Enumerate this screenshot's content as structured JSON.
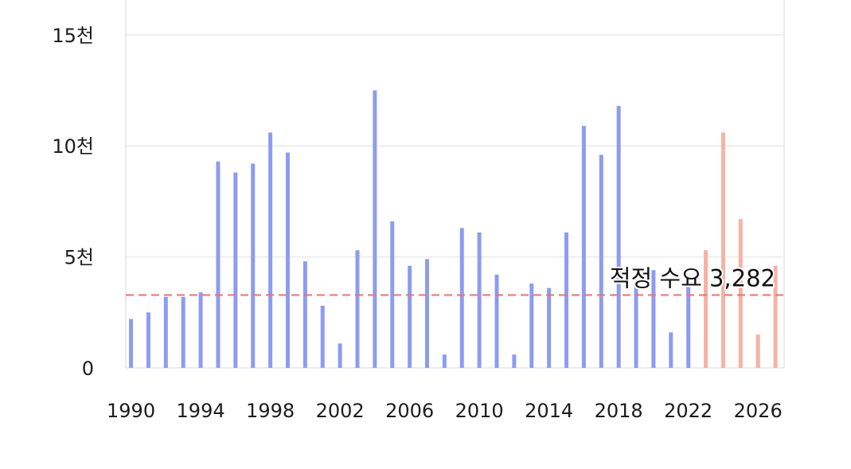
{
  "chart_data": {
    "type": "bar",
    "xlim": [
      1989.7,
      2027.5
    ],
    "ylim": [
      0,
      16500
    ],
    "grid": true,
    "series": [
      {
        "color": "#8d9cf0",
        "x": [
          1990,
          1991,
          1992,
          1993,
          1994,
          1995,
          1996,
          1997,
          1998,
          1999,
          2000,
          2001,
          2002,
          2003,
          2004,
          2005,
          2006,
          2007,
          2008,
          2009,
          2010,
          2011,
          2012,
          2013,
          2014,
          2015,
          2016,
          2017,
          2018,
          2019,
          2020,
          2021,
          2022
        ],
        "values": [
          2200,
          2500,
          3200,
          3200,
          3400,
          9300,
          8800,
          9200,
          10600,
          9700,
          4800,
          2800,
          1100,
          5300,
          12500,
          6600,
          4600,
          4900,
          600,
          6300,
          6100,
          4200,
          600,
          3800,
          3600,
          6100,
          10900,
          9600,
          11800,
          3700,
          4400,
          1600,
          3800
        ]
      },
      {
        "color": "#f7b1a5",
        "x": [
          2023,
          2024,
          2025,
          2026,
          2027
        ],
        "values": [
          5300,
          10600,
          6700,
          1500,
          4600
        ]
      }
    ],
    "x_ticks": [
      {
        "value": 1990,
        "label": "1990"
      },
      {
        "value": 1994,
        "label": "1994"
      },
      {
        "value": 1998,
        "label": "1998"
      },
      {
        "value": 2002,
        "label": "2002"
      },
      {
        "value": 2006,
        "label": "2006"
      },
      {
        "value": 2010,
        "label": "2010"
      },
      {
        "value": 2014,
        "label": "2014"
      },
      {
        "value": 2018,
        "label": "2018"
      },
      {
        "value": 2022,
        "label": "2022"
      },
      {
        "value": 2026,
        "label": "2026"
      }
    ],
    "y_ticks": [
      {
        "value": 0,
        "label": "0"
      },
      {
        "value": 5000,
        "label": "5천"
      },
      {
        "value": 10000,
        "label": "10천"
      },
      {
        "value": 15000,
        "label": "15천"
      }
    ],
    "reference_line": {
      "value": 3282,
      "label": "적정 수요 3,282",
      "color": "#ee7070",
      "dashed": true
    }
  }
}
